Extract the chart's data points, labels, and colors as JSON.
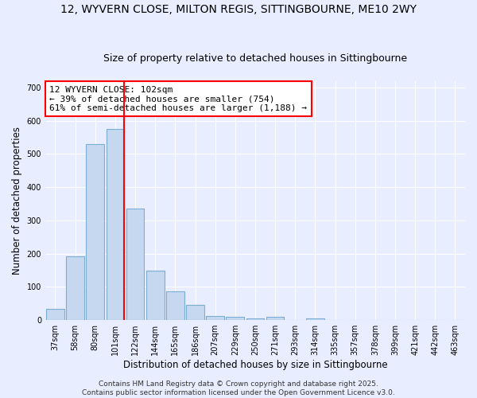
{
  "title": "12, WYVERN CLOSE, MILTON REGIS, SITTINGBOURNE, ME10 2WY",
  "subtitle": "Size of property relative to detached houses in Sittingbourne",
  "xlabel": "Distribution of detached houses by size in Sittingbourne",
  "ylabel": "Number of detached properties",
  "categories": [
    "37sqm",
    "58sqm",
    "80sqm",
    "101sqm",
    "122sqm",
    "144sqm",
    "165sqm",
    "186sqm",
    "207sqm",
    "229sqm",
    "250sqm",
    "271sqm",
    "293sqm",
    "314sqm",
    "335sqm",
    "357sqm",
    "378sqm",
    "399sqm",
    "421sqm",
    "442sqm",
    "463sqm"
  ],
  "values": [
    33,
    193,
    530,
    575,
    335,
    148,
    87,
    45,
    13,
    10,
    5,
    10,
    0,
    5,
    0,
    0,
    0,
    0,
    0,
    0,
    0
  ],
  "bar_color": "#c5d8f0",
  "bar_edge_color": "#7badd4",
  "red_line_index": 3,
  "annotation_text": "12 WYVERN CLOSE: 102sqm\n← 39% of detached houses are smaller (754)\n61% of semi-detached houses are larger (1,188) →",
  "annotation_box_color": "white",
  "annotation_box_edge_color": "red",
  "ylim": [
    0,
    720
  ],
  "yticks": [
    0,
    100,
    200,
    300,
    400,
    500,
    600,
    700
  ],
  "footer_text": "Contains HM Land Registry data © Crown copyright and database right 2025.\nContains public sector information licensed under the Open Government Licence v3.0.",
  "bg_color": "#e8eeff",
  "grid_color": "#ffffff",
  "title_fontsize": 10,
  "subtitle_fontsize": 9,
  "axis_label_fontsize": 8.5,
  "tick_fontsize": 7,
  "footer_fontsize": 6.5,
  "annotation_fontsize": 8
}
